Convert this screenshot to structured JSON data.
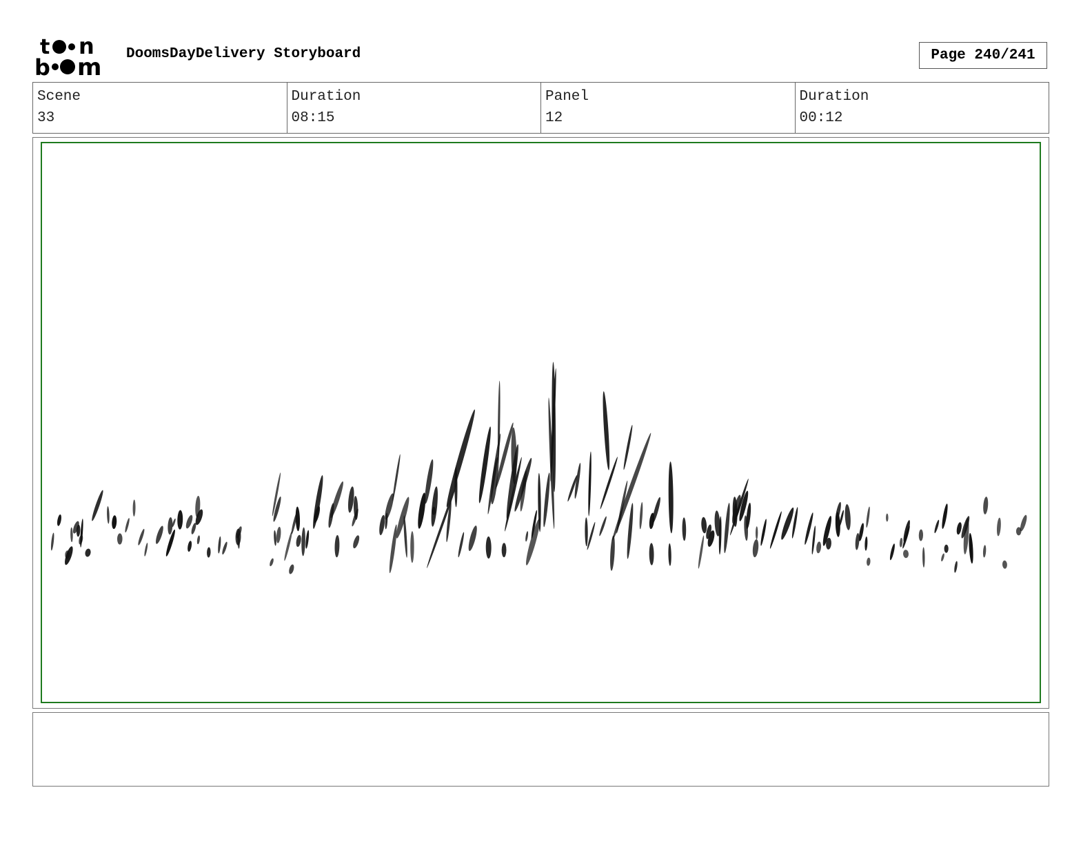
{
  "header": {
    "logo_text": "toon boom",
    "title": "DoomsDayDelivery Storyboard",
    "page_label": "Page 240/241"
  },
  "info": {
    "scene_label": "Scene",
    "scene_value": "33",
    "scene_duration_label": "Duration",
    "scene_duration_value": "08:15",
    "panel_label": "Panel",
    "panel_value": "12",
    "panel_duration_label": "Duration",
    "panel_duration_value": "00:12"
  },
  "panel": {
    "frame_color": "#1e7a1e",
    "drawing": "grass-sketch"
  },
  "notes": {
    "text": ""
  }
}
